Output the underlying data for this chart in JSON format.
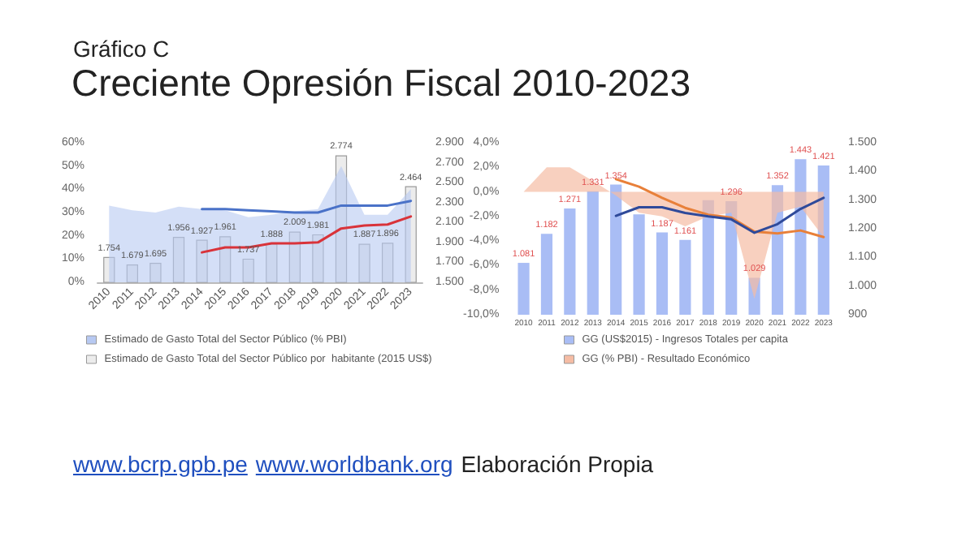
{
  "chart_data": [
    {
      "type": "bar",
      "title": "Gráfico C",
      "subtitle": "Creciente Opresión Fiscal 2010-2023",
      "categories": [
        "2010",
        "2011",
        "2012",
        "2013",
        "2014",
        "2015",
        "2016",
        "2017",
        "2018",
        "2019",
        "2020",
        "2021",
        "2022",
        "2023"
      ],
      "series": [
        {
          "name": "Estimado de Gasto Total del Sector Público (% PBI)",
          "type": "area",
          "color": "#b7c9f2",
          "values": [
            33,
            31,
            30,
            32.5,
            31.5,
            31,
            28,
            29,
            30.5,
            31.5,
            50,
            29,
            29,
            40
          ]
        },
        {
          "name": "Estimado de Gasto Total del Sector Público por  habitante (2015 US$)",
          "type": "bar",
          "axis": "y2",
          "color": "#ececec",
          "values": [
            1754,
            1679,
            1695,
            1956,
            1927,
            1961,
            1737,
            1888,
            2009,
            1981,
            2774,
            1887,
            1896,
            2464
          ],
          "value_labels": [
            "1.754",
            "1.679",
            "1.695",
            "1.956",
            "1.927",
            "1.961",
            "1.737",
            "1.888",
            "2.009",
            "1.981",
            "2.774",
            "1.887",
            "1.896",
            "2.464"
          ]
        },
        {
          "type": "line",
          "color": "#4a72c8",
          "values": [
            null,
            null,
            null,
            null,
            31.5,
            31.5,
            31,
            30.5,
            30,
            30,
            33,
            33,
            33,
            35
          ]
        },
        {
          "type": "line",
          "axis": "y2",
          "color": "#d9333a",
          "values": [
            null,
            null,
            null,
            null,
            1800,
            1850,
            1850,
            1890,
            1890,
            1900,
            2040,
            2070,
            2080,
            2160
          ]
        }
      ],
      "ylim": [
        0,
        60
      ],
      "yticks": [
        {
          "value": 0,
          "label": "0%"
        },
        {
          "value": 10,
          "label": "10%"
        },
        {
          "value": 20,
          "label": "20%"
        },
        {
          "value": 30,
          "label": "30%"
        },
        {
          "value": 40,
          "label": "40%"
        },
        {
          "value": 50,
          "label": "50%"
        },
        {
          "value": 60,
          "label": "60%"
        }
      ],
      "y2lim": [
        1500,
        2900
      ],
      "y2ticks": [
        {
          "value": 1500,
          "label": "1.500"
        },
        {
          "value": 1700,
          "label": "1.700"
        },
        {
          "value": 1900,
          "label": "1.900"
        },
        {
          "value": 2100,
          "label": "2.100"
        },
        {
          "value": 2300,
          "label": "2.300"
        },
        {
          "value": 2500,
          "label": "2.500"
        },
        {
          "value": 2700,
          "label": "2.700"
        },
        {
          "value": 2900,
          "label": "2.900"
        }
      ],
      "legend": "bottom"
    },
    {
      "type": "bar",
      "categories": [
        "2010",
        "2011",
        "2012",
        "2013",
        "2014",
        "2015",
        "2016",
        "2017",
        "2018",
        "2019",
        "2020",
        "2021",
        "2022",
        "2023"
      ],
      "series": [
        {
          "name": "GG (US$2015) - Ingresos Totales per capita",
          "type": "bar",
          "axis": "y2",
          "color": "#a9bdf5",
          "values": [
            1081,
            1182,
            1271,
            1331,
            1354,
            1250,
            1187,
            1161,
            1300,
            1296,
            1029,
            1352,
            1443,
            1421
          ],
          "value_labels": [
            "1.081",
            "1.182",
            "1.271",
            "1.331",
            "1.354",
            null,
            "1.187",
            "1.161",
            null,
            "1.296",
            "1.029",
            "1.352",
            "1.443",
            "1.421"
          ]
        },
        {
          "name": "GG (% PBI) - Resultado Económico",
          "type": "area",
          "color": "#f5bca4",
          "values": [
            0,
            2,
            2,
            0.9,
            -0.3,
            -1.7,
            -2,
            -2.8,
            -2,
            -1.7,
            -8.7,
            -1.7,
            -1.2,
            -3.7
          ]
        },
        {
          "type": "line",
          "axis": "y2",
          "color": "#e8803a",
          "values": [
            null,
            null,
            null,
            null,
            1373,
            1347,
            1308,
            1273,
            1249,
            1239,
            1190,
            1184,
            1194,
            1171
          ]
        },
        {
          "type": "line",
          "axis": "y2",
          "color": "#2f4a9a",
          "values": [
            null,
            null,
            null,
            null,
            1245,
            1275,
            1275,
            1255,
            1243,
            1233,
            1186,
            1216,
            1269,
            1308
          ]
        }
      ],
      "ylim": [
        -10,
        4
      ],
      "yticks": [
        {
          "value": -10,
          "label": "-10,0%"
        },
        {
          "value": -8,
          "label": "-8,0%"
        },
        {
          "value": -6,
          "label": "-6,0%"
        },
        {
          "value": -4,
          "label": "-4,0%"
        },
        {
          "value": -2,
          "label": "-2,0%"
        },
        {
          "value": 0,
          "label": "0,0%"
        },
        {
          "value": 2,
          "label": "2,0%"
        },
        {
          "value": 4,
          "label": "4,0%"
        }
      ],
      "y2lim": [
        900,
        1500
      ],
      "y2ticks": [
        {
          "value": 900,
          "label": "900"
        },
        {
          "value": 1000,
          "label": "1.000"
        },
        {
          "value": 1100,
          "label": "1.100"
        },
        {
          "value": 1200,
          "label": "1.200"
        },
        {
          "value": 1300,
          "label": "1.300"
        },
        {
          "value": 1400,
          "label": "1.400"
        },
        {
          "value": 1500,
          "label": "1.500"
        }
      ],
      "legend": "bottom",
      "annotations": [
        "www.bcrp.gpb.pe",
        "www.worldbank.org",
        "Elaboración Propia"
      ]
    }
  ]
}
